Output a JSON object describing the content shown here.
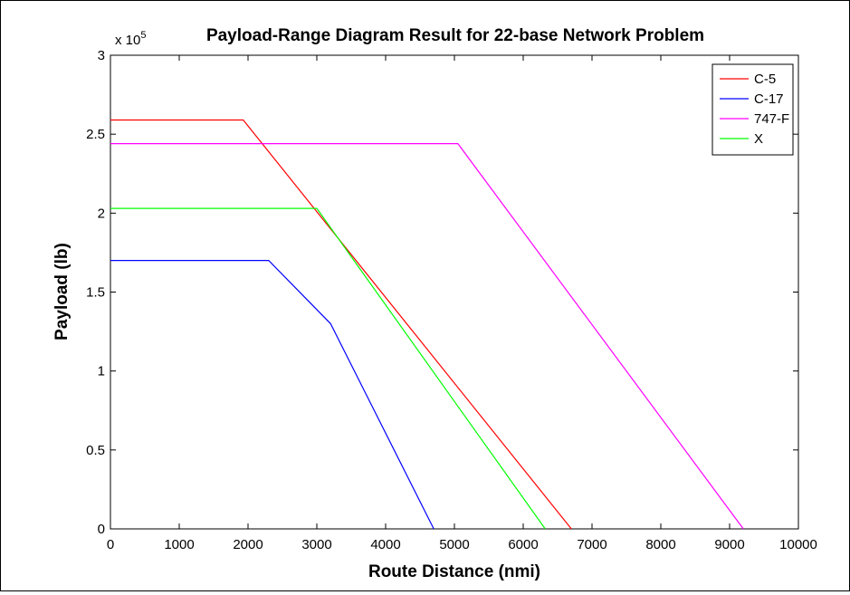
{
  "chart_data": {
    "type": "line",
    "title": "Payload-Range Diagram Result for 22-base Network Problem",
    "xlabel": "Route Distance (nmi)",
    "ylabel": "Payload (lb)",
    "y_multiplier_label": "x 10",
    "y_multiplier_exponent": "5",
    "xlim": [
      0,
      10000
    ],
    "ylim": [
      0,
      3
    ],
    "x_ticks": [
      0,
      1000,
      2000,
      3000,
      4000,
      5000,
      6000,
      7000,
      8000,
      9000,
      10000
    ],
    "y_ticks": [
      0,
      0.5,
      1,
      1.5,
      2,
      2.5,
      3
    ],
    "x_tick_labels": [
      "0",
      "1000",
      "2000",
      "3000",
      "4000",
      "5000",
      "6000",
      "7000",
      "8000",
      "9000",
      "10000"
    ],
    "y_tick_labels": [
      "0",
      "0.5",
      "1",
      "1.5",
      "2",
      "2.5",
      "3"
    ],
    "grid": false,
    "legend_position": "top-right",
    "series": [
      {
        "name": "C-5",
        "color": "#ff0000",
        "points": [
          [
            0,
            2.59
          ],
          [
            1930,
            2.59
          ],
          [
            6700,
            0
          ]
        ]
      },
      {
        "name": "C-17",
        "color": "#0000ff",
        "points": [
          [
            0,
            1.7
          ],
          [
            2300,
            1.7
          ],
          [
            3200,
            1.3
          ],
          [
            4700,
            0
          ]
        ]
      },
      {
        "name": "747-F",
        "color": "#ff00ff",
        "points": [
          [
            0,
            2.44
          ],
          [
            5050,
            2.44
          ],
          [
            9200,
            0
          ]
        ]
      },
      {
        "name": "X",
        "color": "#00ff00",
        "points": [
          [
            0,
            2.03
          ],
          [
            3000,
            2.03
          ],
          [
            6320,
            0
          ]
        ]
      }
    ]
  }
}
